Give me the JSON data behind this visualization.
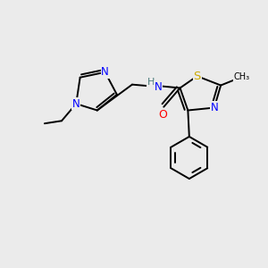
{
  "bg_color": "#ebebeb",
  "atom_colors": {
    "N": "#0000ff",
    "O": "#ff0000",
    "S": "#ccaa00",
    "C": "#000000",
    "H": "#4a7a7a"
  },
  "font_size": 8.5,
  "fig_size": [
    3.0,
    3.0
  ],
  "dpi": 100
}
